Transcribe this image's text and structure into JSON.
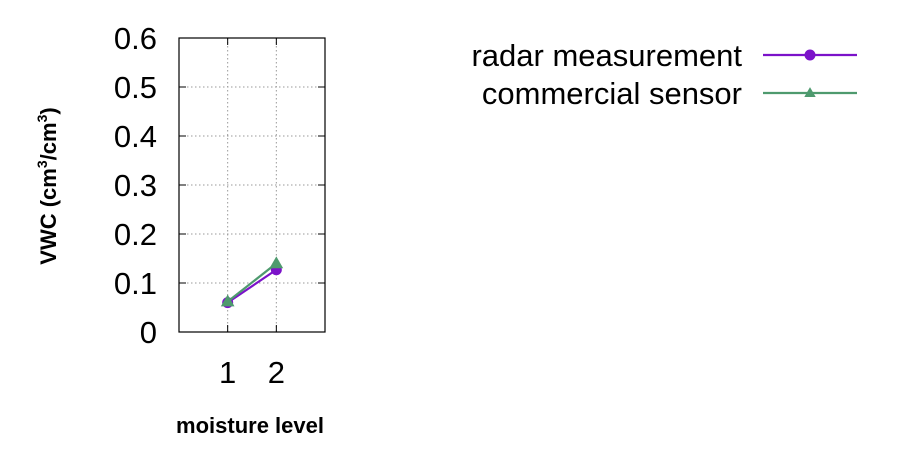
{
  "chart_data": {
    "type": "line",
    "x": [
      1,
      2
    ],
    "xticks": [
      "1",
      "2"
    ],
    "xlim": [
      0,
      3
    ],
    "ylim": [
      0,
      0.6
    ],
    "yticks": [
      "0",
      "0.1",
      "0.2",
      "0.3",
      "0.4",
      "0.5",
      "0.6"
    ],
    "xlabel": "moisture level",
    "ylabel": {
      "prefix": "VWC (cm",
      "sup1": "3",
      "mid": "/cm",
      "sup2": "3",
      "suffix": ")"
    },
    "grid": true,
    "legend_position": "top-right",
    "series": [
      {
        "name": "radar measurement",
        "values": [
          0.06,
          0.127
        ],
        "color": "#7b12c9",
        "marker": "circle"
      },
      {
        "name": "commercial sensor",
        "values": [
          0.062,
          0.14
        ],
        "color": "#4e9a6e",
        "marker": "triangle"
      }
    ]
  }
}
